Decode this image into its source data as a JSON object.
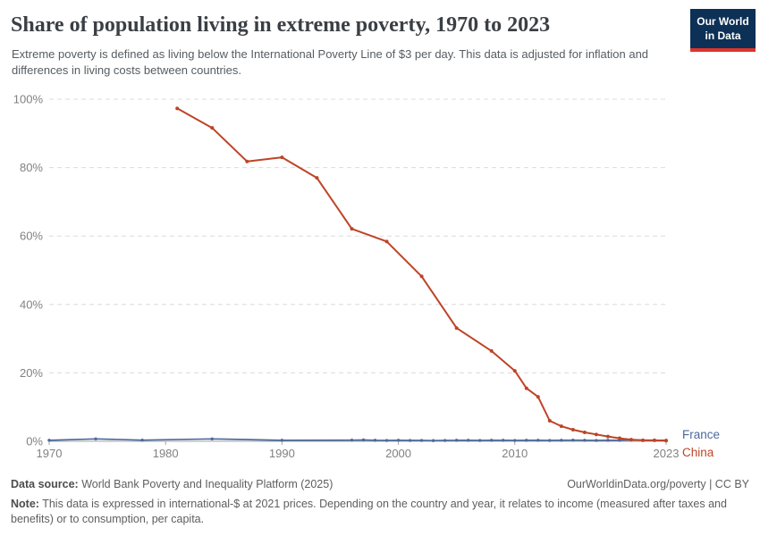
{
  "header": {
    "title": "Share of population living in extreme poverty, 1970 to 2023",
    "subtitle": "Extreme poverty is defined as living below the International Poverty Line of $3 per day. This data is adjusted for inflation and differences in living costs between countries.",
    "logo": {
      "line1": "Our World",
      "line2": "in Data",
      "bg_color": "#0d3056",
      "bar_color": "#e0342c"
    }
  },
  "chart_data": {
    "type": "line",
    "title": "Share of population living in extreme poverty, 1970 to 2023",
    "xlim": [
      1970,
      2023
    ],
    "ylim": [
      0,
      100
    ],
    "x_ticks": [
      1970,
      1980,
      1990,
      2000,
      2010,
      2023
    ],
    "y_ticks": [
      0,
      20,
      40,
      60,
      80,
      100
    ],
    "y_tick_labels": [
      "0%",
      "20%",
      "40%",
      "60%",
      "80%",
      "100%"
    ],
    "grid": "horizontal-dashed",
    "legend_position": "line-end-labels",
    "axis_color": "#a6a6a6",
    "grid_color": "#dcdcdc",
    "tick_label_color": "#818181",
    "series": [
      {
        "name": "France",
        "color": "#4c6a9c",
        "points": [
          [
            1970,
            0.3
          ],
          [
            1974,
            0.7
          ],
          [
            1978,
            0.35
          ],
          [
            1984,
            0.7
          ],
          [
            1990,
            0.3
          ],
          [
            1996,
            0.35
          ],
          [
            1997,
            0.4
          ],
          [
            1998,
            0.3
          ],
          [
            1999,
            0.25
          ],
          [
            2000,
            0.3
          ],
          [
            2001,
            0.25
          ],
          [
            2002,
            0.25
          ],
          [
            2003,
            0.2
          ],
          [
            2004,
            0.25
          ],
          [
            2005,
            0.3
          ],
          [
            2006,
            0.3
          ],
          [
            2007,
            0.25
          ],
          [
            2008,
            0.3
          ],
          [
            2009,
            0.3
          ],
          [
            2010,
            0.25
          ],
          [
            2011,
            0.3
          ],
          [
            2012,
            0.3
          ],
          [
            2013,
            0.25
          ],
          [
            2014,
            0.3
          ],
          [
            2015,
            0.35
          ],
          [
            2016,
            0.3
          ],
          [
            2017,
            0.25
          ],
          [
            2018,
            0.3
          ],
          [
            2019,
            0.3
          ],
          [
            2020,
            0.4
          ],
          [
            2021,
            0.35
          ],
          [
            2022,
            0.3
          ],
          [
            2023,
            0.3
          ]
        ]
      },
      {
        "name": "China",
        "color": "#be4426",
        "points": [
          [
            1981,
            97.3
          ],
          [
            1984,
            91.6
          ],
          [
            1987,
            81.8
          ],
          [
            1990,
            83.0
          ],
          [
            1993,
            77.0
          ],
          [
            1996,
            62.1
          ],
          [
            1999,
            58.4
          ],
          [
            2002,
            48.2
          ],
          [
            2005,
            33.1
          ],
          [
            2008,
            26.4
          ],
          [
            2010,
            20.6
          ],
          [
            2011,
            15.5
          ],
          [
            2012,
            13.0
          ],
          [
            2013,
            6.0
          ],
          [
            2014,
            4.4
          ],
          [
            2015,
            3.4
          ],
          [
            2016,
            2.6
          ],
          [
            2017,
            2.0
          ],
          [
            2018,
            1.4
          ],
          [
            2019,
            0.9
          ],
          [
            2020,
            0.5
          ],
          [
            2021,
            0.3
          ],
          [
            2022,
            0.3
          ],
          [
            2023,
            0.2
          ]
        ]
      }
    ]
  },
  "footer": {
    "data_source_label": "Data source:",
    "data_source": "World Bank Poverty and Inequality Platform (2025)",
    "attribution": "OurWorldinData.org/poverty | CC BY",
    "note_label": "Note:",
    "note": "This data is expressed in international-$ at 2021 prices. Depending on the country and year, it relates to income (measured after taxes and benefits) or to consumption, per capita."
  }
}
